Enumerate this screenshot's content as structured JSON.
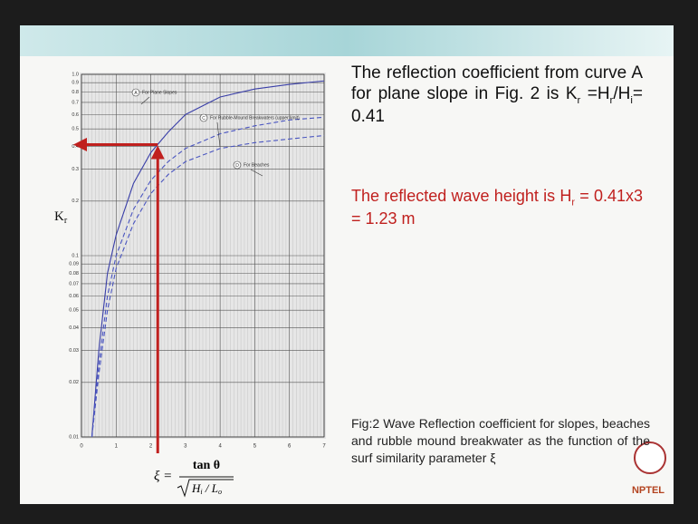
{
  "chart_data": {
    "type": "line",
    "ylabel": {
      "main": "K",
      "sub": "r"
    },
    "xlabel": {
      "lhs": "ξ =",
      "num": "tan θ",
      "den": "H",
      "den_sub": "i",
      "den_rest": " / L",
      "den_sub2": "o"
    },
    "xlim": [
      0,
      7
    ],
    "xticks": [
      0,
      1,
      2,
      3,
      4,
      5,
      6,
      7
    ],
    "ylim": [
      0.01,
      1
    ],
    "log_y": true,
    "grid": true,
    "yticks": [
      0.01,
      0.02,
      0.03,
      0.04,
      0.05,
      0.06,
      0.07,
      0.08,
      0.09,
      0.1,
      0.2,
      0.3,
      0.4,
      0.5,
      0.6,
      0.7,
      0.8,
      0.9,
      {
        "value": 1,
        "label": "1.0"
      }
    ],
    "x": [
      0.3,
      0.5,
      0.75,
      1,
      1.5,
      2,
      2.5,
      3,
      4,
      5,
      6,
      7
    ],
    "series": [
      {
        "name": "For Plane Slopes",
        "letter": "A",
        "color": "#3a3fa8",
        "dashed": false,
        "values": [
          0.01,
          0.03,
          0.08,
          0.13,
          0.25,
          0.37,
          0.48,
          0.6,
          0.75,
          0.83,
          0.88,
          0.92
        ]
      },
      {
        "name": "For Rubble-Mound Breakwaters (upper limit)",
        "letter": "C",
        "color": "#4a55c0",
        "dashed": true,
        "values": [
          0.01,
          0.025,
          0.06,
          0.1,
          0.18,
          0.26,
          0.33,
          0.39,
          0.47,
          0.52,
          0.56,
          0.58
        ]
      },
      {
        "name": "For Beaches",
        "letter": "D",
        "color": "#4a55c0",
        "dashed": true,
        "values": [
          0.01,
          0.022,
          0.05,
          0.085,
          0.15,
          0.22,
          0.28,
          0.33,
          0.39,
          0.42,
          0.44,
          0.46
        ]
      }
    ],
    "reading": {
      "x": 2.2,
      "y": 0.41,
      "color": "#c0201e"
    }
  },
  "text": {
    "para1": [
      {
        "text": "The reflection coefficient from curve A for plane slope in Fig. 2 is K",
        "sub": false
      },
      {
        "text": "r",
        "sub": true
      },
      {
        "text": " =H",
        "sub": false
      },
      {
        "text": "r",
        "sub": true
      },
      {
        "text": "/H",
        "sub": false
      },
      {
        "text": "i",
        "sub": true
      },
      {
        "text": "= 0.41",
        "sub": false
      }
    ],
    "para2": [
      {
        "text": "The reflected wave height is H",
        "sub": false
      },
      {
        "text": "r",
        "sub": true
      },
      {
        "text": " = 0.41x3 = 1.23 m",
        "sub": false
      }
    ],
    "caption": "Fig:2 Wave Reflection coefficient for slopes, beaches and rubble mound breakwater as the function of the surf similarity parameter ξ",
    "logo": "NPTEL"
  }
}
